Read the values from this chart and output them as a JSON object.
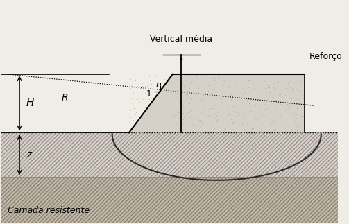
{
  "bg_color": "#f0ede6",
  "title_text": "Vertical média",
  "reinforcement_label": "Reforço",
  "H_label": "H",
  "R_label": "R",
  "n_label": "n",
  "one_label": "1",
  "z_label": "z",
  "camada_label": "Camada resistente",
  "fig_width": 5.03,
  "fig_height": 3.23,
  "dpi": 100,
  "xlim": [
    0,
    10
  ],
  "ylim": [
    0,
    7
  ],
  "ground_y": 2.85,
  "resist_y": 1.45,
  "embankment_top_y": 4.7,
  "embankment_toe_x": 3.8,
  "embankment_flat_x": 5.1,
  "reinforcement_x": 9.0,
  "vertical_media_x": 5.35,
  "left_terrain_x0": 0.0,
  "left_terrain_x1": 3.5,
  "left_terrain_y": 4.7,
  "dotted_line_x0": 0.3,
  "dotted_line_y0": 4.72,
  "dotted_line_x1": 9.2,
  "dotted_line_y1": 4.72
}
